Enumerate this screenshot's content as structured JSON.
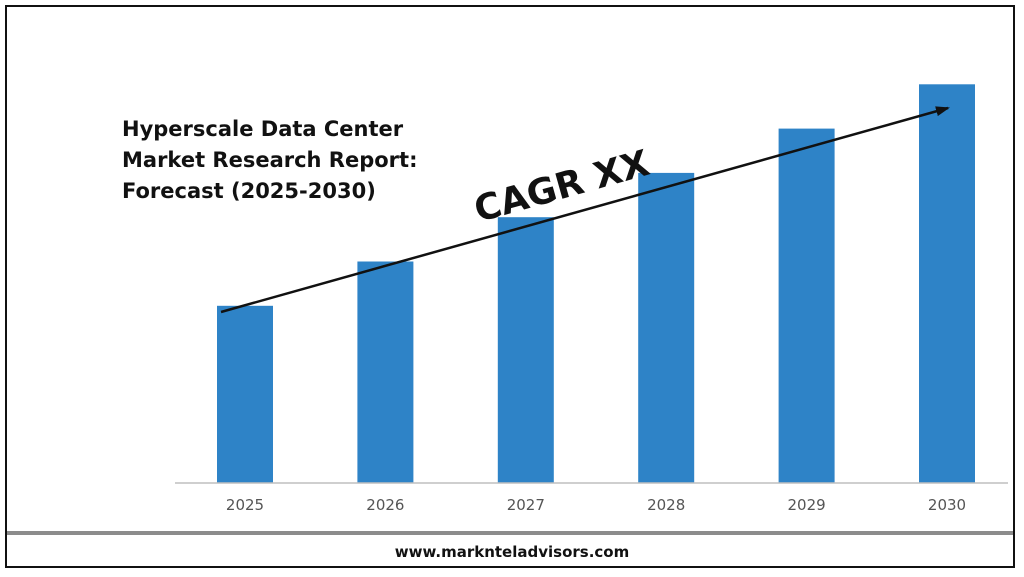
{
  "title_lines": [
    "Hyperscale Data Center",
    "Market Research Report:",
    "Forecast (2025-2030)"
  ],
  "trend_label": "CAGR XX",
  "footer": {
    "website": "www.marknteladvisors.com"
  },
  "colors": {
    "bar": "#2e83c7",
    "axis": "#bfbfbf",
    "text": "#111111",
    "tick_text": "#555555",
    "footer_bar": "#8c8c8c"
  },
  "chart_data": {
    "type": "bar",
    "categories": [
      "2025",
      "2026",
      "2027",
      "2028",
      "2029",
      "2030"
    ],
    "values": [
      40,
      50,
      60,
      70,
      80,
      90
    ],
    "value_scale": "relative (no value axis shown)",
    "ylim": [
      0,
      100
    ],
    "grid": false,
    "legend": "none",
    "annotation": {
      "type": "arrow",
      "direction": "upward trend",
      "label": "CAGR XX"
    }
  }
}
